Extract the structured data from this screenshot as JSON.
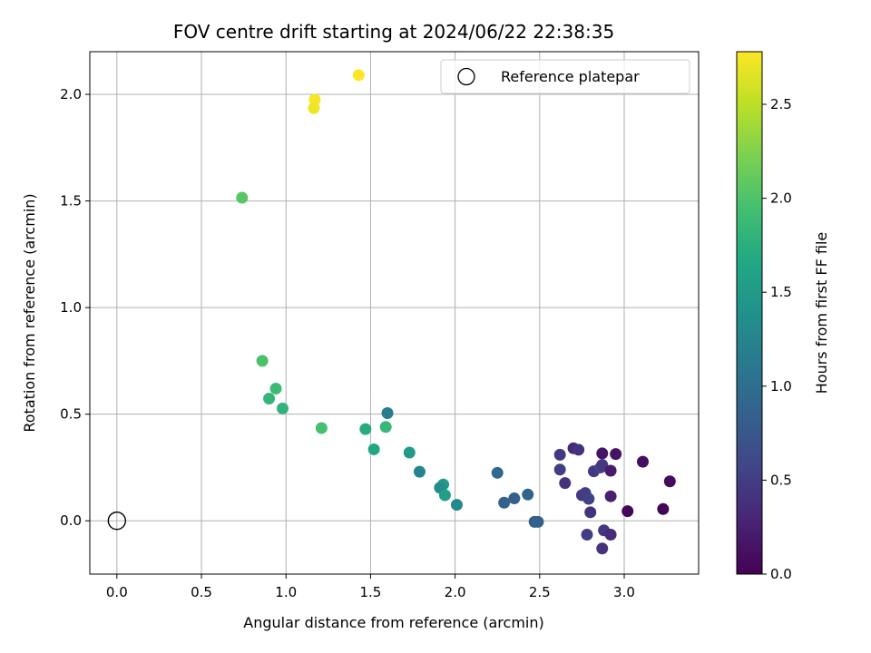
{
  "chart_data": {
    "type": "scatter",
    "title": "FOV centre drift starting at 2024/06/22 22:38:35",
    "xlabel": "Angular distance from reference (arcmin)",
    "ylabel": "Rotation from reference (arcmin)",
    "xlim": [
      -0.16,
      3.44
    ],
    "ylim": [
      -0.25,
      2.2
    ],
    "xticks": [
      0.0,
      0.5,
      1.0,
      1.5,
      2.0,
      2.5,
      3.0
    ],
    "xtick_labels": [
      "0.0",
      "0.5",
      "1.0",
      "1.5",
      "2.0",
      "2.5",
      "3.0"
    ],
    "yticks": [
      0.0,
      0.5,
      1.0,
      1.5,
      2.0
    ],
    "ytick_labels": [
      "0.0",
      "0.5",
      "1.0",
      "1.5",
      "2.0"
    ],
    "grid": true,
    "legend": {
      "location": "upper right",
      "entries": [
        "Reference platepar"
      ]
    },
    "reference_point": {
      "x": 0.0,
      "y": 0.0,
      "label": "Reference platepar"
    },
    "colorbar": {
      "label": "Hours from first FF file",
      "colormap": "viridis",
      "range": [
        0.0,
        2.78
      ],
      "ticks": [
        0.0,
        0.5,
        1.0,
        1.5,
        2.0,
        2.5
      ],
      "tick_labels": [
        "0.0",
        "0.5",
        "1.0",
        "1.5",
        "2.0",
        "2.5"
      ]
    },
    "points": [
      {
        "x": 1.43,
        "y": 2.09,
        "c": 2.78
      },
      {
        "x": 1.17,
        "y": 1.975,
        "c": 2.75
      },
      {
        "x": 1.165,
        "y": 1.935,
        "c": 2.72
      },
      {
        "x": 0.74,
        "y": 1.515,
        "c": 2.05
      },
      {
        "x": 0.86,
        "y": 0.75,
        "c": 1.98
      },
      {
        "x": 0.94,
        "y": 0.62,
        "c": 1.9
      },
      {
        "x": 0.9,
        "y": 0.573,
        "c": 1.82
      },
      {
        "x": 0.98,
        "y": 0.527,
        "c": 1.8
      },
      {
        "x": 1.21,
        "y": 0.435,
        "c": 1.95
      },
      {
        "x": 1.47,
        "y": 0.43,
        "c": 1.7
      },
      {
        "x": 1.59,
        "y": 0.44,
        "c": 1.85
      },
      {
        "x": 1.6,
        "y": 0.505,
        "c": 1.15
      },
      {
        "x": 1.52,
        "y": 0.335,
        "c": 1.65
      },
      {
        "x": 1.73,
        "y": 0.32,
        "c": 1.5
      },
      {
        "x": 1.79,
        "y": 0.23,
        "c": 1.25
      },
      {
        "x": 1.93,
        "y": 0.17,
        "c": 1.5
      },
      {
        "x": 1.91,
        "y": 0.155,
        "c": 1.35
      },
      {
        "x": 1.94,
        "y": 0.12,
        "c": 1.55
      },
      {
        "x": 2.01,
        "y": 0.075,
        "c": 1.3
      },
      {
        "x": 2.25,
        "y": 0.225,
        "c": 0.95
      },
      {
        "x": 2.29,
        "y": 0.085,
        "c": 0.88
      },
      {
        "x": 2.35,
        "y": 0.105,
        "c": 0.85
      },
      {
        "x": 2.43,
        "y": 0.123,
        "c": 0.9
      },
      {
        "x": 2.47,
        "y": -0.005,
        "c": 0.82
      },
      {
        "x": 2.49,
        "y": -0.005,
        "c": 0.85
      },
      {
        "x": 2.62,
        "y": 0.31,
        "c": 0.45
      },
      {
        "x": 2.62,
        "y": 0.24,
        "c": 0.5
      },
      {
        "x": 2.65,
        "y": 0.177,
        "c": 0.4
      },
      {
        "x": 2.7,
        "y": 0.34,
        "c": 0.3
      },
      {
        "x": 2.73,
        "y": 0.333,
        "c": 0.4
      },
      {
        "x": 2.75,
        "y": 0.12,
        "c": 0.45
      },
      {
        "x": 2.77,
        "y": 0.13,
        "c": 0.5
      },
      {
        "x": 2.78,
        "y": -0.065,
        "c": 0.5
      },
      {
        "x": 2.79,
        "y": 0.103,
        "c": 0.55
      },
      {
        "x": 2.8,
        "y": 0.04,
        "c": 0.4
      },
      {
        "x": 2.82,
        "y": 0.232,
        "c": 0.45
      },
      {
        "x": 2.86,
        "y": 0.25,
        "c": 0.55
      },
      {
        "x": 2.87,
        "y": 0.262,
        "c": 0.45
      },
      {
        "x": 2.87,
        "y": 0.316,
        "c": 0.15
      },
      {
        "x": 2.87,
        "y": -0.13,
        "c": 0.4
      },
      {
        "x": 2.88,
        "y": -0.045,
        "c": 0.45
      },
      {
        "x": 2.92,
        "y": 0.235,
        "c": 0.2
      },
      {
        "x": 2.92,
        "y": 0.115,
        "c": 0.25
      },
      {
        "x": 2.92,
        "y": -0.065,
        "c": 0.35
      },
      {
        "x": 2.95,
        "y": 0.313,
        "c": 0.15
      },
      {
        "x": 3.02,
        "y": 0.045,
        "c": 0.05
      },
      {
        "x": 3.11,
        "y": 0.277,
        "c": 0.1
      },
      {
        "x": 3.23,
        "y": 0.055,
        "c": 0.02
      },
      {
        "x": 3.27,
        "y": 0.185,
        "c": 0.08
      }
    ]
  }
}
